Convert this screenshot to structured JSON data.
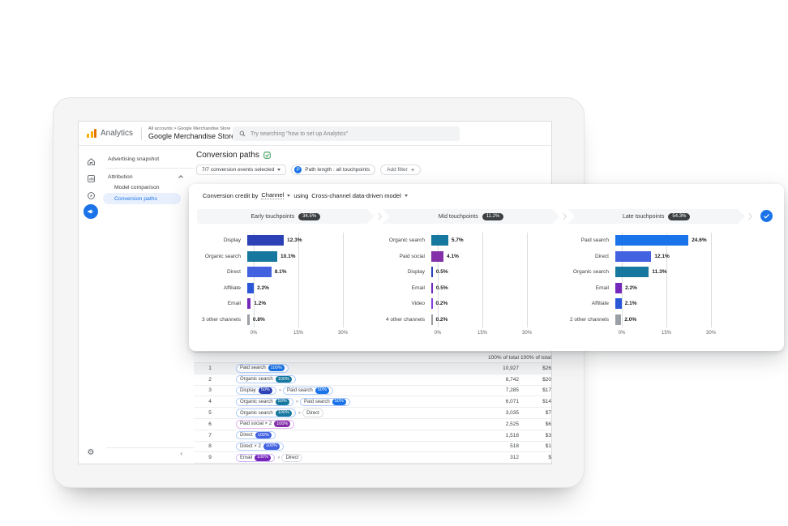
{
  "colors": {
    "accent_blue": "#1a73e8",
    "badge_dark": "#3c4043",
    "paid_search": "#1a73e8",
    "organic_search": "#16789f",
    "direct": "#4262e0",
    "display": "#2c41b5",
    "affiliate": "#2a56d8",
    "email": "#7627bb",
    "paid_social": "#8430a8",
    "video": "#8440d8",
    "other": "#9aa0a6"
  },
  "icons": {
    "gear": "⚙",
    "collapse": "‹",
    "path_separator": "››",
    "plus": "+"
  },
  "topbar": {
    "product": "Analytics",
    "breadcrumb": "All accounts > Google Merchandise Store",
    "account": "Google Merchandise Store",
    "search_placeholder": "Try searching \"how to set up Analytics\""
  },
  "sidebar": {
    "snapshot": "Advertising snapshot",
    "section": "Attribution",
    "items": [
      {
        "label": "Model comparison",
        "selected": false
      },
      {
        "label": "Conversion paths",
        "selected": true
      }
    ]
  },
  "page": {
    "title": "Conversion paths",
    "events_filter": "7/7 conversion events selected",
    "path_filter": "Path length : all touchpoints",
    "path_filter_initial": "P",
    "add_filter": "Add filter"
  },
  "overlay": {
    "credit_label": "Conversion credit by",
    "dimension": "Channel",
    "using_label": "using",
    "model": "Cross-channel data-driven model"
  },
  "chart_data": [
    {
      "type": "bar",
      "title": "Early touchpoints",
      "share": "34.5%",
      "categories": [
        "Display",
        "Organic search",
        "Direct",
        "Affiliate",
        "Email",
        "3 other channels"
      ],
      "values": [
        12.3,
        10.1,
        8.1,
        2.2,
        1.2,
        0.8
      ],
      "value_labels": [
        "12.3%",
        "10.1%",
        "8.1%",
        "2.2%",
        "1.2%",
        "0.8%"
      ],
      "bar_channels": [
        "display",
        "organic_search",
        "direct",
        "affiliate",
        "email",
        "other"
      ],
      "xlim": [
        0,
        30
      ],
      "ticks": [
        {
          "v": 0,
          "label": "0%"
        },
        {
          "v": 15,
          "label": "15%"
        },
        {
          "v": 30,
          "label": "30%"
        }
      ]
    },
    {
      "type": "bar",
      "title": "Mid touchpoints",
      "share": "11.2%",
      "categories": [
        "Organic search",
        "Paid social",
        "Display",
        "Email",
        "Video",
        "4 other channels"
      ],
      "values": [
        5.7,
        4.1,
        0.5,
        0.5,
        0.2,
        0.2
      ],
      "value_labels": [
        "5.7%",
        "4.1%",
        "0.5%",
        "0.5%",
        "0.2%",
        "0.2%"
      ],
      "bar_channels": [
        "organic_search",
        "paid_social",
        "display",
        "email",
        "video",
        "other"
      ],
      "xlim": [
        0,
        30
      ],
      "ticks": [
        {
          "v": 0,
          "label": "0%"
        },
        {
          "v": 15,
          "label": "15%"
        },
        {
          "v": 30,
          "label": "30%"
        }
      ]
    },
    {
      "type": "bar",
      "title": "Late touchpoints",
      "share": "54.3%",
      "categories": [
        "Paid search",
        "Direct",
        "Organic search",
        "Email",
        "Affiliate",
        "2 other channels"
      ],
      "values": [
        24.6,
        12.1,
        11.3,
        2.2,
        2.1,
        2.0
      ],
      "value_labels": [
        "24.6%",
        "12.1%",
        "11.3%",
        "2.2%",
        "2.1%",
        "2.0%"
      ],
      "bar_channels": [
        "paid_search",
        "direct",
        "organic_search",
        "email",
        "affiliate",
        "other"
      ],
      "xlim": [
        0,
        30
      ],
      "ticks": [
        {
          "v": 0,
          "label": "0%"
        },
        {
          "v": 15,
          "label": "15%"
        },
        {
          "v": 30,
          "label": "30%"
        }
      ]
    }
  ],
  "table": {
    "headers": [
      "100% of total",
      "100% of total"
    ],
    "rows": [
      {
        "index": "1",
        "path": [
          {
            "label": "Paid search",
            "badge": "100%",
            "color": "paid_search",
            "border": "#aecbfa"
          }
        ],
        "conversions": "10,927",
        "revenue": "$26"
      },
      {
        "index": "2",
        "path": [
          {
            "label": "Organic search",
            "badge": "100%",
            "color": "organic_search",
            "border": "#aecbfa"
          }
        ],
        "conversions": "8,742",
        "revenue": "$20"
      },
      {
        "index": "3",
        "path": [
          {
            "label": "Display",
            "badge": "50%",
            "color": "display",
            "border": "#aecbfa"
          },
          {
            "label": "Paid search",
            "badge": "50%",
            "color": "paid_search",
            "border": "#aecbfa"
          }
        ],
        "conversions": "7,285",
        "revenue": "$17"
      },
      {
        "index": "4",
        "path": [
          {
            "label": "Organic search",
            "badge": "50%",
            "color": "organic_search",
            "border": "#aecbfa"
          },
          {
            "label": "Paid search",
            "badge": "50%",
            "color": "paid_search",
            "border": "#aecbfa"
          }
        ],
        "conversions": "6,071",
        "revenue": "$14"
      },
      {
        "index": "5",
        "path": [
          {
            "label": "Organic search",
            "badge": "100%",
            "color": "organic_search",
            "border": "#aecbfa"
          },
          {
            "label": "Direct",
            "badge": null,
            "color": null,
            "border": "#dadce0"
          }
        ],
        "conversions": "3,035",
        "revenue": "$7"
      },
      {
        "index": "6",
        "path": [
          {
            "label": "Paid social × 2",
            "badge": "100%",
            "color": "paid_social",
            "border": "#e3b5f0"
          }
        ],
        "conversions": "2,525",
        "revenue": "$6"
      },
      {
        "index": "7",
        "path": [
          {
            "label": "Direct",
            "badge": "100%",
            "color": "direct",
            "border": "#aecbfa"
          }
        ],
        "conversions": "1,518",
        "revenue": "$3"
      },
      {
        "index": "8",
        "path": [
          {
            "label": "Direct × 2",
            "badge": "100%",
            "color": "direct",
            "border": "#aecbfa"
          }
        ],
        "conversions": "518",
        "revenue": "$1"
      },
      {
        "index": "9",
        "path": [
          {
            "label": "Email",
            "badge": "100%",
            "color": "email",
            "border": "#d3b4f5"
          },
          {
            "label": "Direct",
            "badge": null,
            "color": null,
            "border": "#dadce0"
          }
        ],
        "conversions": "312",
        "revenue": "$"
      }
    ]
  }
}
